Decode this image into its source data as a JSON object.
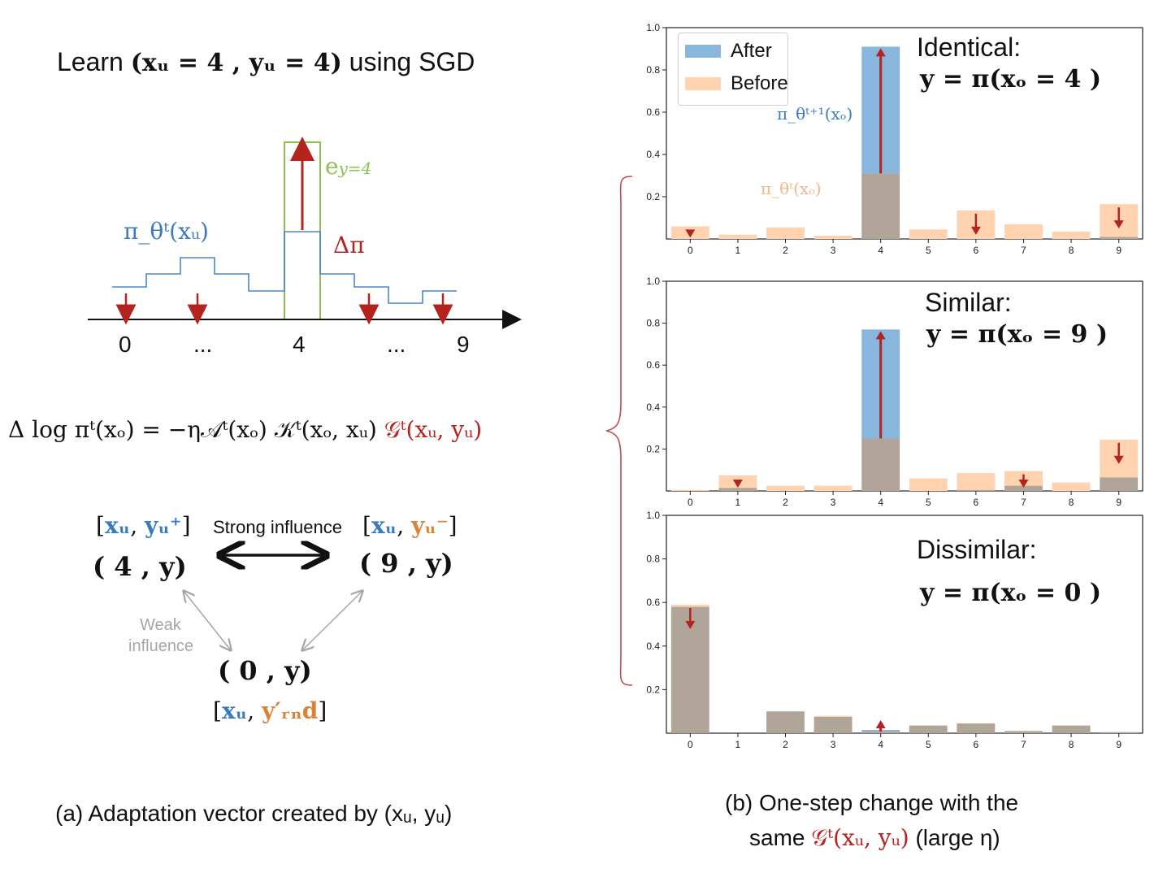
{
  "left": {
    "title_prefix": "Learn ",
    "title_math": "(xᵤ = 4 , yᵤ = 4)",
    "title_suffix": " using SGD",
    "pi_label": "π_θᵗ(xᵤ)",
    "e_label": "e",
    "e_sub": "y=4",
    "delta_pi": "Δπ",
    "axis_ticks": [
      "0",
      "...",
      "4",
      "...",
      "9"
    ],
    "equation_lhs": "Δ log πᵗ(xₒ) = −η𝒜ᵗ(xₒ) 𝒦ᵗ(xₒ, xᵤ)",
    "equation_g": "𝒢ᵗ(xᵤ, yᵤ)",
    "pos_xu": "xᵤ",
    "pos_y": "yᵤ⁺",
    "neg_xu": "xᵤ",
    "neg_y": "yᵤ⁻",
    "rnd_xu": "xᵤ",
    "rnd_y": "y′ᵣₙd",
    "strong_label": "Strong influence",
    "weak_label_1": "Weak",
    "weak_label_2": "influence",
    "pair_4": "( 4 , y)",
    "pair_9": "( 9 , y)",
    "pair_0": "( 0 , y)",
    "caption": "(a) Adaptation vector created by (xᵤ, yᵤ)"
  },
  "right": {
    "caption_line1": "(b) One-step change with the",
    "caption_line2_prefix": "same ",
    "caption_line2_g": "𝒢ᵗ(xᵤ, yᵤ)",
    "caption_line2_suffix": " (large η)",
    "legend_after": "After",
    "legend_before": "Before",
    "after_annot": "π_θᵗ⁺¹(xₒ)",
    "before_annot": "π_θᵗ(xₒ)"
  },
  "chart_data": [
    {
      "type": "bar",
      "title": "Identical:",
      "subtitle": "y = π(xₒ = 4 )",
      "categories": [
        "0",
        "1",
        "2",
        "3",
        "4",
        "5",
        "6",
        "7",
        "8",
        "9"
      ],
      "ylim": [
        0,
        1.0
      ],
      "yticks": [
        "1.0",
        "0.8",
        "0.6",
        "0.4",
        "0.2"
      ],
      "series": [
        {
          "name": "Before",
          "values": [
            0.06,
            0.02,
            0.055,
            0.015,
            0.31,
            0.045,
            0.135,
            0.07,
            0.035,
            0.165
          ]
        },
        {
          "name": "After",
          "values": [
            0.0,
            0.0,
            0.0,
            0.0,
            0.91,
            0.0,
            0.0,
            0.0,
            0.0,
            0.01
          ]
        }
      ],
      "arrows": {
        "down": [
          "0",
          "6",
          "9"
        ],
        "up": [
          "4"
        ]
      }
    },
    {
      "type": "bar",
      "title": "Similar:",
      "subtitle": "y = π(xₒ = 9 )",
      "categories": [
        "0",
        "1",
        "2",
        "3",
        "4",
        "5",
        "6",
        "7",
        "8",
        "9"
      ],
      "ylim": [
        0,
        1.0
      ],
      "yticks": [
        "1.0",
        "0.8",
        "0.6",
        "0.4",
        "0.2"
      ],
      "series": [
        {
          "name": "Before",
          "values": [
            0.005,
            0.075,
            0.025,
            0.025,
            0.25,
            0.06,
            0.085,
            0.095,
            0.04,
            0.245
          ]
        },
        {
          "name": "After",
          "values": [
            0.0,
            0.015,
            0.0,
            0.0,
            0.77,
            0.0,
            0.005,
            0.025,
            0.0,
            0.065
          ]
        }
      ],
      "arrows": {
        "down": [
          "1",
          "7",
          "9"
        ],
        "up": [
          "4"
        ]
      }
    },
    {
      "type": "bar",
      "title": "Dissimilar:",
      "subtitle": "y = π(xₒ = 0 )",
      "categories": [
        "0",
        "1",
        "2",
        "3",
        "4",
        "5",
        "6",
        "7",
        "8",
        "9"
      ],
      "ylim": [
        0,
        1.0
      ],
      "yticks": [
        "1.0",
        "0.8",
        "0.6",
        "0.4",
        "0.2"
      ],
      "series": [
        {
          "name": "Before",
          "values": [
            0.59,
            0.0,
            0.1,
            0.08,
            0.01,
            0.035,
            0.045,
            0.01,
            0.035,
            0.005
          ]
        },
        {
          "name": "After",
          "values": [
            0.58,
            0.0,
            0.1,
            0.075,
            0.015,
            0.035,
            0.045,
            0.01,
            0.035,
            0.005
          ]
        }
      ],
      "arrows": {
        "down": [
          "0"
        ],
        "up": [
          "4"
        ]
      }
    }
  ]
}
